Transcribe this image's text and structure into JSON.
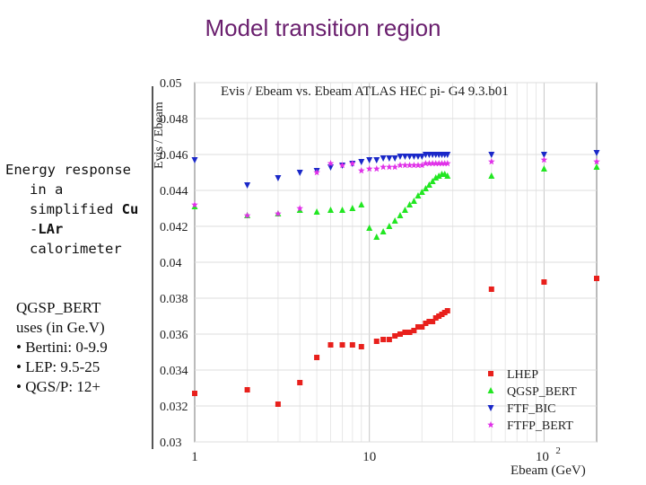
{
  "slide": {
    "title": "Model transition region",
    "description": {
      "line1": "Energy response",
      "line2": "in a",
      "line3_pre": "simplified ",
      "line3_bold": "Cu",
      "line4_pre": "-",
      "line4_bold": "LAr",
      "line5": "calorimeter"
    },
    "physics_list": {
      "line1": "QGSP_BERT",
      "line2": "uses (in Ge.V)",
      "items": [
        "• Bertini: 0-9.9",
        "• LEP: 9.5-25",
        "• QGS/P:  12+"
      ]
    }
  },
  "colors": {
    "title": "#6a1f6e",
    "LHEP": "#e8201c",
    "QGSP_BERT": "#22e622",
    "FTF_BIC": "#1a28c8",
    "FTFP_BERT": "#e030e8"
  },
  "chart_data": {
    "type": "scatter",
    "title": "Evis / Ebeam  vs.  Ebeam  ATLAS HEC  pi-  G4 9.3.b01",
    "xlabel": "Ebeam (GeV)",
    "ylabel": "Evis / Ebeam",
    "xscale": "log",
    "xlim": [
      1,
      200
    ],
    "ylim": [
      0.03,
      0.05
    ],
    "xticks": [
      {
        "value": 1,
        "label": "1"
      },
      {
        "value": 10,
        "label": "10"
      }
    ],
    "xtick_extra": {
      "value": 100,
      "base": "10",
      "exp": "2"
    },
    "yticks": [
      {
        "value": 0.03,
        "label": "0.03"
      },
      {
        "value": 0.032,
        "label": "0.032"
      },
      {
        "value": 0.034,
        "label": "0.034"
      },
      {
        "value": 0.036,
        "label": "0.036"
      },
      {
        "value": 0.038,
        "label": "0.038"
      },
      {
        "value": 0.04,
        "label": "0.04"
      },
      {
        "value": 0.042,
        "label": "0.042"
      },
      {
        "value": 0.044,
        "label": "0.044"
      },
      {
        "value": 0.046,
        "label": "0.046"
      },
      {
        "value": 0.048,
        "label": "0.048"
      },
      {
        "value": 0.05,
        "label": "0.05"
      }
    ],
    "legend_position": "bottom-right",
    "series": [
      {
        "name": "LHEP",
        "marker": "square",
        "color": "#e8201c",
        "x": [
          1,
          2,
          3,
          4,
          5,
          6,
          7,
          8,
          9,
          11,
          12,
          13,
          14,
          15,
          16,
          17,
          18,
          19,
          20,
          21,
          22,
          23,
          24,
          25,
          26,
          27,
          28,
          50,
          100,
          200
        ],
        "y": [
          0.0327,
          0.0329,
          0.0321,
          0.0333,
          0.0347,
          0.0354,
          0.0354,
          0.0354,
          0.0353,
          0.0356,
          0.0357,
          0.0357,
          0.0359,
          0.036,
          0.0361,
          0.0361,
          0.0362,
          0.0364,
          0.0364,
          0.0366,
          0.0367,
          0.0367,
          0.0369,
          0.037,
          0.0371,
          0.0372,
          0.0373,
          0.0385,
          0.0389,
          0.0391
        ]
      },
      {
        "name": "QGSP_BERT",
        "marker": "triangle-up",
        "color": "#22e622",
        "x": [
          1,
          2,
          3,
          4,
          5,
          6,
          7,
          8,
          9,
          10,
          11,
          12,
          13,
          14,
          15,
          16,
          17,
          18,
          19,
          20,
          21,
          22,
          23,
          24,
          25,
          26,
          27,
          28,
          50,
          100,
          200
        ],
        "y": [
          0.0431,
          0.0426,
          0.0427,
          0.0429,
          0.0428,
          0.0429,
          0.0429,
          0.043,
          0.0432,
          0.0419,
          0.0414,
          0.0417,
          0.042,
          0.0423,
          0.0426,
          0.0429,
          0.0432,
          0.0434,
          0.0437,
          0.0439,
          0.0441,
          0.0443,
          0.0445,
          0.0447,
          0.0448,
          0.0449,
          0.0449,
          0.0448,
          0.0448,
          0.0452,
          0.0453
        ]
      },
      {
        "name": "FTF_BIC",
        "marker": "triangle-down",
        "color": "#1a28c8",
        "x": [
          1,
          2,
          3,
          4,
          5,
          6,
          7,
          8,
          9,
          10,
          11,
          12,
          13,
          14,
          15,
          16,
          17,
          18,
          19,
          20,
          21,
          22,
          23,
          24,
          25,
          26,
          27,
          28,
          50,
          100,
          200
        ],
        "y": [
          0.0457,
          0.0443,
          0.0447,
          0.045,
          0.0451,
          0.0453,
          0.0454,
          0.0455,
          0.0456,
          0.0457,
          0.0457,
          0.0458,
          0.0458,
          0.0458,
          0.0459,
          0.0459,
          0.0459,
          0.0459,
          0.0459,
          0.0459,
          0.046,
          0.046,
          0.046,
          0.046,
          0.046,
          0.046,
          0.046,
          0.046,
          0.046,
          0.046,
          0.0461
        ]
      },
      {
        "name": "FTFP_BERT",
        "marker": "star",
        "color": "#e030e8",
        "x": [
          1,
          2,
          3,
          4,
          5,
          6,
          7,
          8,
          9,
          10,
          11,
          12,
          13,
          14,
          15,
          16,
          17,
          18,
          19,
          20,
          21,
          22,
          23,
          24,
          25,
          26,
          27,
          28,
          50,
          100,
          200
        ],
        "y": [
          0.0432,
          0.0426,
          0.0427,
          0.043,
          0.045,
          0.0455,
          0.0454,
          0.0455,
          0.0451,
          0.0452,
          0.0452,
          0.0453,
          0.0453,
          0.0453,
          0.0454,
          0.0454,
          0.0454,
          0.0454,
          0.0454,
          0.0454,
          0.0455,
          0.0455,
          0.0455,
          0.0455,
          0.0455,
          0.0455,
          0.0455,
          0.0455,
          0.0456,
          0.0457,
          0.0456
        ]
      }
    ]
  }
}
